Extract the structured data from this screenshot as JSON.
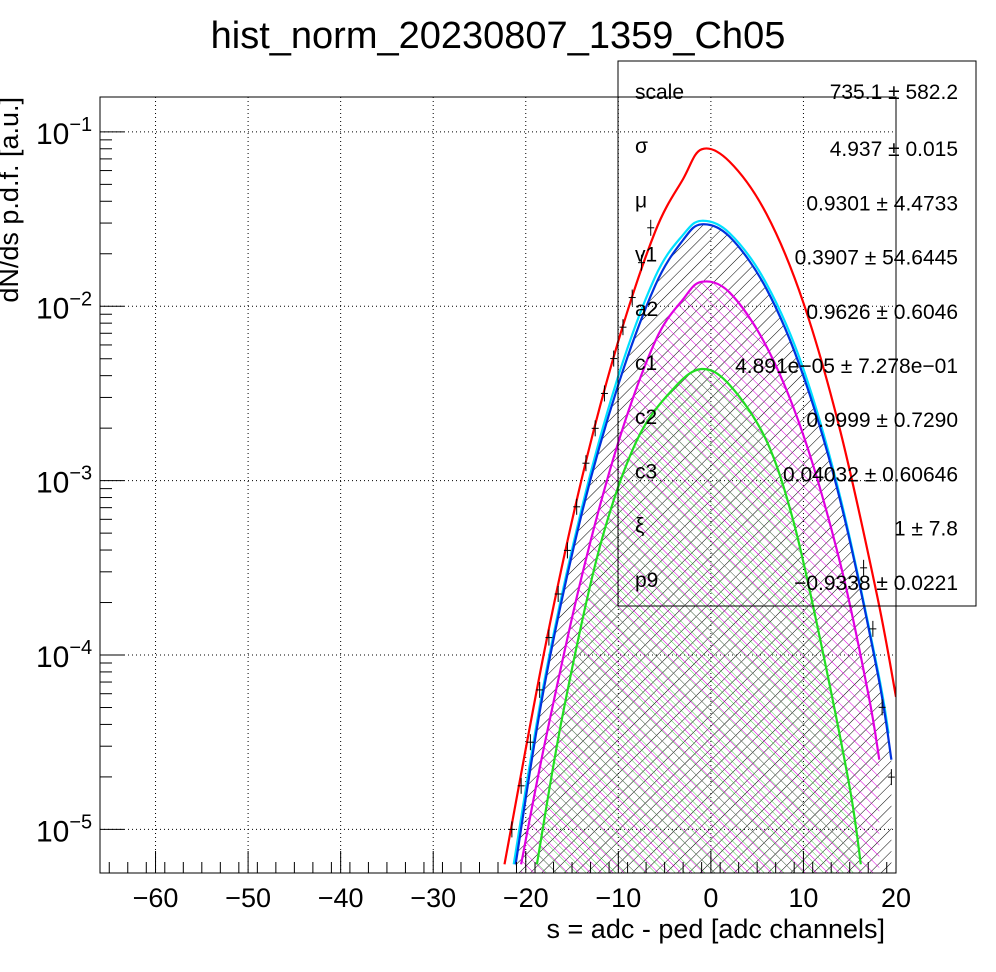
{
  "chart_data": {
    "type": "line",
    "title": "hist_norm_20230807_1359_Ch05",
    "xlabel": "s = adc - ped [adc channels]",
    "ylabel": "dN/ds p.d.f. [a.u.]",
    "log_y": true,
    "grid": true,
    "xlim": [
      -66,
      20
    ],
    "ylim_log10": [
      -5.25,
      -0.8
    ],
    "x_ticks": [
      -60,
      -50,
      -40,
      -30,
      -20,
      -10,
      0,
      10,
      20
    ],
    "x_tick_labels": [
      "−60",
      "−50",
      "−40",
      "−30",
      "−20",
      "−10",
      "0",
      "10",
      "20"
    ],
    "y_ticks": [
      {
        "base": "10",
        "exp": "−1",
        "log10": -1
      },
      {
        "base": "10",
        "exp": "−2",
        "log10": -2
      },
      {
        "base": "10",
        "exp": "−3",
        "log10": -3
      },
      {
        "base": "10",
        "exp": "−4",
        "log10": -4
      },
      {
        "base": "10",
        "exp": "−5",
        "log10": -5
      }
    ],
    "series": [
      {
        "color": "#ff0000",
        "fill": "none",
        "points": [
          [
            -22.3,
            -5.2
          ],
          [
            -18,
            -3.98
          ],
          [
            -14,
            -3.0
          ],
          [
            -10,
            -2.2
          ],
          [
            -6,
            -1.57
          ],
          [
            -3,
            -1.27
          ],
          [
            -1,
            -1.1
          ],
          [
            2,
            -1.17
          ],
          [
            6,
            -1.47
          ],
          [
            10,
            -1.98
          ],
          [
            14,
            -2.72
          ],
          [
            18,
            -3.67
          ],
          [
            20,
            -4.24
          ]
        ]
      },
      {
        "color": "#00e0ff",
        "fill": "none",
        "points": [
          [
            -21.3,
            -5.2
          ],
          [
            -18,
            -4.15
          ],
          [
            -14,
            -3.17
          ],
          [
            -10,
            -2.4
          ],
          [
            -6,
            -1.83
          ],
          [
            -3,
            -1.59
          ],
          [
            -1,
            -1.51
          ],
          [
            2,
            -1.58
          ],
          [
            6,
            -1.87
          ],
          [
            10,
            -2.36
          ],
          [
            14,
            -3.1
          ],
          [
            18,
            -4.08
          ],
          [
            19.2,
            -4.45
          ]
        ]
      },
      {
        "color": "#0033dd",
        "fill": "hatch-black",
        "points": [
          [
            -21.1,
            -5.2
          ],
          [
            -18,
            -4.18
          ],
          [
            -14,
            -3.2
          ],
          [
            -10,
            -2.45
          ],
          [
            -6,
            -1.88
          ],
          [
            -3,
            -1.62
          ],
          [
            -1,
            -1.53
          ],
          [
            2,
            -1.6
          ],
          [
            6,
            -1.9
          ],
          [
            10,
            -2.4
          ],
          [
            14,
            -3.12
          ],
          [
            18,
            -4.1
          ],
          [
            19.5,
            -4.6
          ]
        ]
      },
      {
        "color": "#e000e0",
        "fill": "hatch-magenta",
        "points": [
          [
            -20.5,
            -5.2
          ],
          [
            -18,
            -4.52
          ],
          [
            -14,
            -3.56
          ],
          [
            -10,
            -2.78
          ],
          [
            -6,
            -2.2
          ],
          [
            -3,
            -1.96
          ],
          [
            -1,
            -1.86
          ],
          [
            2,
            -1.92
          ],
          [
            6,
            -2.23
          ],
          [
            10,
            -2.74
          ],
          [
            14,
            -3.48
          ],
          [
            17,
            -4.22
          ],
          [
            18.2,
            -4.6
          ]
        ]
      },
      {
        "color": "#22dd22",
        "fill": "hatch-green",
        "points": [
          [
            -18.8,
            -5.2
          ],
          [
            -16,
            -4.34
          ],
          [
            -12,
            -3.38
          ],
          [
            -8,
            -2.77
          ],
          [
            -4,
            -2.47
          ],
          [
            -1,
            -2.36
          ],
          [
            2,
            -2.45
          ],
          [
            6,
            -2.77
          ],
          [
            9,
            -3.25
          ],
          [
            12,
            -3.96
          ],
          [
            15,
            -4.76
          ],
          [
            16.2,
            -5.2
          ]
        ]
      }
    ],
    "data_points": [
      [
        -21.5,
        -5.0
      ],
      [
        -20.5,
        -4.75
      ],
      [
        -19.5,
        -4.5
      ],
      [
        -18.5,
        -4.2
      ],
      [
        -17.5,
        -3.9
      ],
      [
        -16.5,
        -3.65
      ],
      [
        -15.5,
        -3.4
      ],
      [
        -14.5,
        -3.15
      ],
      [
        -13.5,
        -2.9
      ],
      [
        -12.5,
        -2.7
      ],
      [
        -11.5,
        -2.5
      ],
      [
        -10.5,
        -2.3
      ],
      [
        -9.5,
        -2.12
      ],
      [
        -8.5,
        -1.95
      ],
      [
        -7.5,
        -1.75
      ],
      [
        -6.5,
        -1.55
      ],
      [
        16.5,
        -3.5
      ],
      [
        17.5,
        -3.85
      ],
      [
        18.5,
        -4.3
      ],
      [
        19.5,
        -4.7
      ]
    ],
    "stats_box": {
      "rows": [
        {
          "name": "scale",
          "value": "735.1 ± 582.2"
        },
        {
          "name": "σ",
          "value": "4.937 ± 0.015"
        },
        {
          "name": "μ",
          "value": "0.9301 ± 4.4733"
        },
        {
          "name": "v1",
          "value": "0.3907 ± 54.6445"
        },
        {
          "name": "a2",
          "value": "0.9626 ± 0.6046"
        },
        {
          "name": "c1",
          "value": "4.891e−05 ± 7.278e−01"
        },
        {
          "name": "c2",
          "value": "0.9999 ± 0.7290"
        },
        {
          "name": "c3",
          "value": "0.04032 ± 0.60646"
        },
        {
          "name": "ξ",
          "value": "1 ± 7.8"
        },
        {
          "name": "p9",
          "value": "−0.9338 ± 0.0221"
        }
      ]
    }
  }
}
